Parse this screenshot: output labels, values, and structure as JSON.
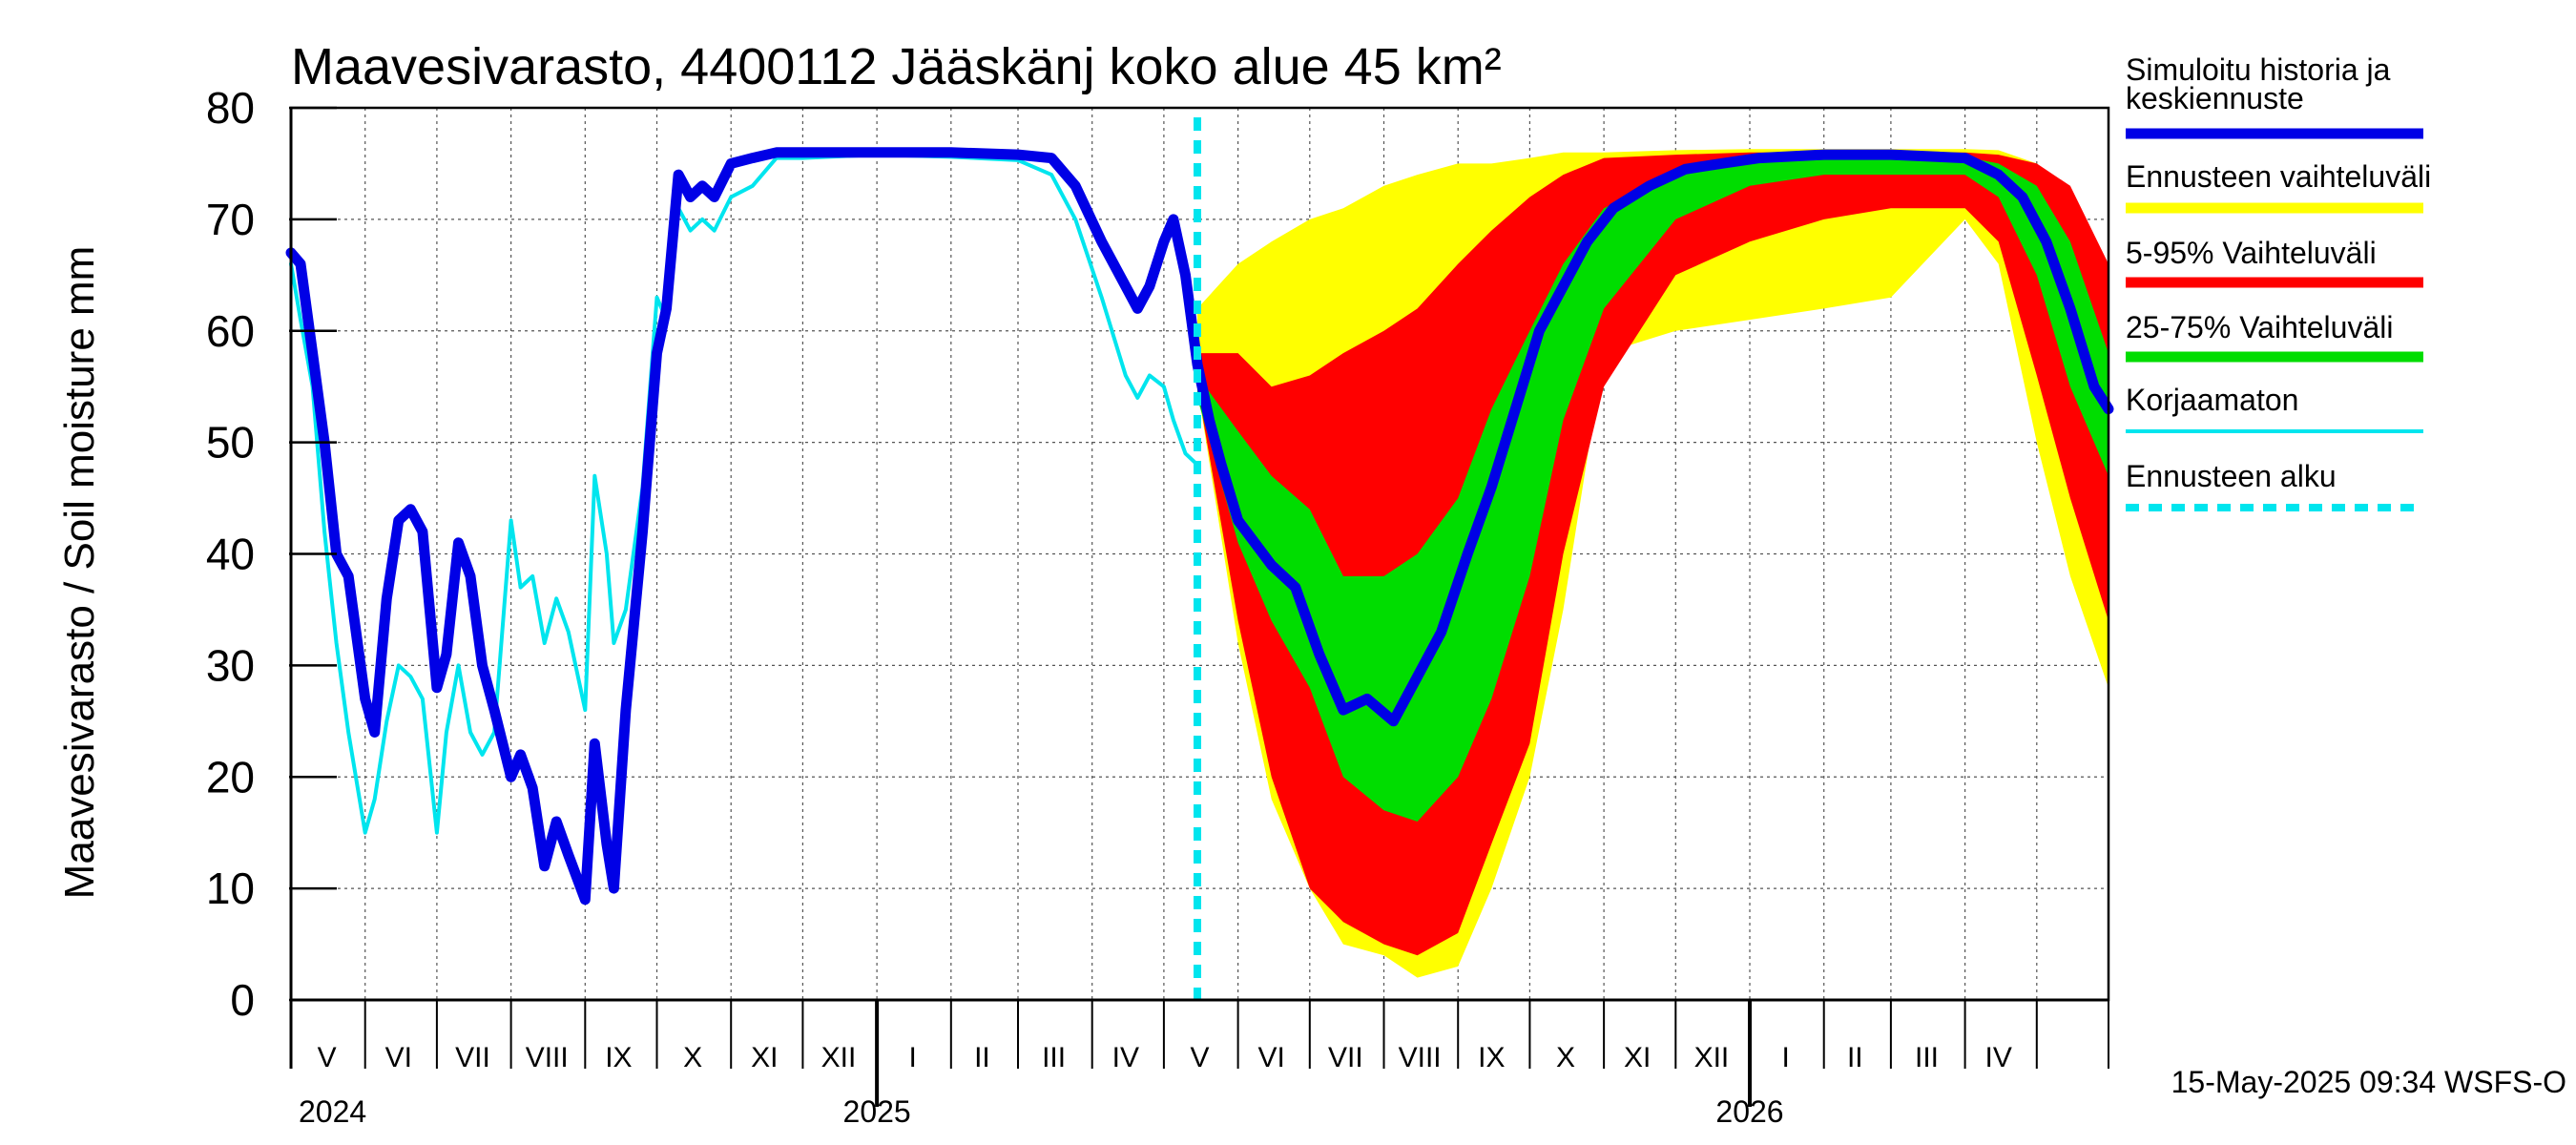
{
  "chart_data": {
    "type": "area",
    "title": "Maavesivarasto, 4400112 Jääskänj koko alue 45 km²",
    "ylabel": "Maavesivarasto / Soil moisture   mm",
    "ylim": [
      0,
      80
    ],
    "yticks": [
      0,
      10,
      20,
      30,
      40,
      50,
      60,
      70,
      80
    ],
    "xlim": [
      "2024-05-01",
      "2026-05-31"
    ],
    "grid": true,
    "legend_position": "right",
    "month_labels": [
      {
        "label": "V",
        "date": "2024-05-16"
      },
      {
        "label": "VI",
        "date": "2024-06-15"
      },
      {
        "label": "VII",
        "date": "2024-07-16"
      },
      {
        "label": "VIII",
        "date": "2024-08-16"
      },
      {
        "label": "IX",
        "date": "2024-09-15"
      },
      {
        "label": "X",
        "date": "2024-10-16"
      },
      {
        "label": "XI",
        "date": "2024-11-15"
      },
      {
        "label": "XII",
        "date": "2024-12-16"
      },
      {
        "label": "I",
        "date": "2025-01-16"
      },
      {
        "label": "II",
        "date": "2025-02-14"
      },
      {
        "label": "III",
        "date": "2025-03-16"
      },
      {
        "label": "IV",
        "date": "2025-04-15"
      },
      {
        "label": "V",
        "date": "2025-05-16"
      },
      {
        "label": "VI",
        "date": "2025-06-15"
      },
      {
        "label": "VII",
        "date": "2025-07-16"
      },
      {
        "label": "VIII",
        "date": "2025-08-16"
      },
      {
        "label": "IX",
        "date": "2025-09-15"
      },
      {
        "label": "X",
        "date": "2025-10-16"
      },
      {
        "label": "XI",
        "date": "2025-11-15"
      },
      {
        "label": "XII",
        "date": "2025-12-16"
      },
      {
        "label": "I",
        "date": "2026-01-16"
      },
      {
        "label": "II",
        "date": "2026-02-14"
      },
      {
        "label": "III",
        "date": "2026-03-16"
      },
      {
        "label": "IV",
        "date": "2026-04-15"
      }
    ],
    "year_labels": [
      {
        "label": "2024",
        "date": "2024-05-01"
      },
      {
        "label": "2025",
        "date": "2025-01-01"
      },
      {
        "label": "2026",
        "date": "2026-01-01"
      }
    ],
    "forecast_start": "2025-05-15",
    "series": [
      {
        "name": "Simuloitu historia ja keskiennuste",
        "color": "#0000e6",
        "kind": "line",
        "points": [
          [
            "2024-05-01",
            67
          ],
          [
            "2024-05-05",
            66
          ],
          [
            "2024-05-10",
            58
          ],
          [
            "2024-05-15",
            50
          ],
          [
            "2024-05-20",
            40
          ],
          [
            "2024-05-25",
            38
          ],
          [
            "2024-06-01",
            27
          ],
          [
            "2024-06-05",
            24
          ],
          [
            "2024-06-10",
            36
          ],
          [
            "2024-06-15",
            43
          ],
          [
            "2024-06-20",
            44
          ],
          [
            "2024-06-25",
            42
          ],
          [
            "2024-07-01",
            28
          ],
          [
            "2024-07-05",
            31
          ],
          [
            "2024-07-10",
            41
          ],
          [
            "2024-07-15",
            38
          ],
          [
            "2024-07-20",
            30
          ],
          [
            "2024-07-25",
            26
          ],
          [
            "2024-08-01",
            20
          ],
          [
            "2024-08-05",
            22
          ],
          [
            "2024-08-10",
            19
          ],
          [
            "2024-08-15",
            12
          ],
          [
            "2024-08-20",
            16
          ],
          [
            "2024-08-25",
            13
          ],
          [
            "2024-09-01",
            9
          ],
          [
            "2024-09-05",
            23
          ],
          [
            "2024-09-10",
            14
          ],
          [
            "2024-09-13",
            10
          ],
          [
            "2024-09-18",
            26
          ],
          [
            "2024-09-25",
            42
          ],
          [
            "2024-10-01",
            58
          ],
          [
            "2024-10-05",
            62
          ],
          [
            "2024-10-10",
            74
          ],
          [
            "2024-10-15",
            72
          ],
          [
            "2024-10-20",
            73
          ],
          [
            "2024-10-25",
            72
          ],
          [
            "2024-11-01",
            75
          ],
          [
            "2024-11-10",
            75.5
          ],
          [
            "2024-11-20",
            76
          ],
          [
            "2024-12-01",
            76
          ],
          [
            "2025-01-01",
            76
          ],
          [
            "2025-02-01",
            76
          ],
          [
            "2025-03-01",
            75.8
          ],
          [
            "2025-03-15",
            75.5
          ],
          [
            "2025-03-25",
            73
          ],
          [
            "2025-04-05",
            68
          ],
          [
            "2025-04-15",
            64
          ],
          [
            "2025-04-20",
            62
          ],
          [
            "2025-04-25",
            64
          ],
          [
            "2025-05-01",
            68
          ],
          [
            "2025-05-05",
            70
          ],
          [
            "2025-05-10",
            65
          ],
          [
            "2025-05-15",
            57
          ],
          [
            "2025-05-20",
            52
          ],
          [
            "2025-05-25",
            48
          ],
          [
            "2025-06-01",
            43
          ],
          [
            "2025-06-15",
            39
          ],
          [
            "2025-06-25",
            37
          ],
          [
            "2025-07-05",
            31
          ],
          [
            "2025-07-15",
            26
          ],
          [
            "2025-07-25",
            27
          ],
          [
            "2025-08-05",
            25
          ],
          [
            "2025-08-15",
            29
          ],
          [
            "2025-08-25",
            33
          ],
          [
            "2025-09-05",
            40
          ],
          [
            "2025-09-15",
            46
          ],
          [
            "2025-09-25",
            53
          ],
          [
            "2025-10-05",
            60
          ],
          [
            "2025-10-15",
            64
          ],
          [
            "2025-10-25",
            68
          ],
          [
            "2025-11-05",
            71
          ],
          [
            "2025-11-20",
            73
          ],
          [
            "2025-12-05",
            74.5
          ],
          [
            "2025-12-20",
            75
          ],
          [
            "2026-01-05",
            75.5
          ],
          [
            "2026-02-01",
            75.8
          ],
          [
            "2026-03-01",
            75.8
          ],
          [
            "2026-04-01",
            75.5
          ],
          [
            "2026-04-15",
            74
          ],
          [
            "2026-04-25",
            72
          ],
          [
            "2026-05-05",
            68
          ],
          [
            "2026-05-15",
            62
          ],
          [
            "2026-05-25",
            55
          ],
          [
            "2026-05-31",
            53
          ]
        ]
      },
      {
        "name": "Korjaamaton",
        "color": "#00e5ee",
        "kind": "line",
        "points": [
          [
            "2024-05-01",
            66
          ],
          [
            "2024-05-05",
            61
          ],
          [
            "2024-05-10",
            55
          ],
          [
            "2024-05-15",
            42
          ],
          [
            "2024-05-20",
            32
          ],
          [
            "2024-05-25",
            24
          ],
          [
            "2024-06-01",
            15
          ],
          [
            "2024-06-05",
            18
          ],
          [
            "2024-06-10",
            25
          ],
          [
            "2024-06-15",
            30
          ],
          [
            "2024-06-20",
            29
          ],
          [
            "2024-06-25",
            27
          ],
          [
            "2024-07-01",
            15
          ],
          [
            "2024-07-05",
            24
          ],
          [
            "2024-07-10",
            30
          ],
          [
            "2024-07-15",
            24
          ],
          [
            "2024-07-20",
            22
          ],
          [
            "2024-07-25",
            24
          ],
          [
            "2024-08-01",
            43
          ],
          [
            "2024-08-05",
            37
          ],
          [
            "2024-08-10",
            38
          ],
          [
            "2024-08-15",
            32
          ],
          [
            "2024-08-20",
            36
          ],
          [
            "2024-08-25",
            33
          ],
          [
            "2024-09-01",
            26
          ],
          [
            "2024-09-05",
            47
          ],
          [
            "2024-09-10",
            40
          ],
          [
            "2024-09-13",
            32
          ],
          [
            "2024-09-18",
            35
          ],
          [
            "2024-09-25",
            46
          ],
          [
            "2024-10-01",
            63
          ],
          [
            "2024-10-05",
            61
          ],
          [
            "2024-10-10",
            71
          ],
          [
            "2024-10-15",
            69
          ],
          [
            "2024-10-20",
            70
          ],
          [
            "2024-10-25",
            69
          ],
          [
            "2024-11-01",
            72
          ],
          [
            "2024-11-10",
            73
          ],
          [
            "2024-11-20",
            75.5
          ],
          [
            "2024-12-01",
            75.5
          ],
          [
            "2025-01-01",
            75.8
          ],
          [
            "2025-02-01",
            75.6
          ],
          [
            "2025-03-01",
            75.3
          ],
          [
            "2025-03-15",
            74
          ],
          [
            "2025-03-25",
            70
          ],
          [
            "2025-04-05",
            63
          ],
          [
            "2025-04-15",
            56
          ],
          [
            "2025-04-20",
            54
          ],
          [
            "2025-04-25",
            56
          ],
          [
            "2025-05-01",
            55
          ],
          [
            "2025-05-05",
            52
          ],
          [
            "2025-05-10",
            49
          ],
          [
            "2025-05-15",
            48
          ]
        ]
      }
    ],
    "bands": [
      {
        "name": "Ennusteen vaihteluväli",
        "color": "#ffff00",
        "x": [
          "2025-05-15",
          "2025-06-01",
          "2025-06-15",
          "2025-07-01",
          "2025-07-15",
          "2025-08-01",
          "2025-08-15",
          "2025-09-01",
          "2025-09-15",
          "2025-10-01",
          "2025-10-15",
          "2025-11-01",
          "2025-12-01",
          "2026-01-01",
          "2026-02-01",
          "2026-03-01",
          "2026-04-01",
          "2026-04-15",
          "2026-05-01",
          "2026-05-15",
          "2026-05-31"
        ],
        "low": [
          55,
          32,
          18,
          10,
          5,
          4,
          2,
          3,
          10,
          20,
          35,
          58,
          60,
          61,
          62,
          63,
          70,
          66,
          50,
          38,
          28
        ],
        "high": [
          62,
          66,
          68,
          70,
          71,
          73,
          74,
          75,
          75,
          75.5,
          76,
          76,
          76.2,
          76.3,
          76.3,
          76.3,
          76.3,
          76.2,
          75,
          71,
          64
        ]
      },
      {
        "name": "5-95% Vaihteluväli",
        "color": "#ff0000",
        "x": [
          "2025-05-15",
          "2025-06-01",
          "2025-06-15",
          "2025-07-01",
          "2025-07-15",
          "2025-08-01",
          "2025-08-15",
          "2025-09-01",
          "2025-09-15",
          "2025-10-01",
          "2025-10-15",
          "2025-11-01",
          "2025-12-01",
          "2026-01-01",
          "2026-02-01",
          "2026-03-01",
          "2026-04-01",
          "2026-04-15",
          "2026-05-01",
          "2026-05-15",
          "2026-05-31"
        ],
        "low": [
          55,
          34,
          20,
          10,
          7,
          5,
          4,
          6,
          14,
          23,
          40,
          55,
          65,
          68,
          70,
          71,
          71,
          68,
          56,
          45,
          34
        ],
        "high": [
          58,
          58,
          55,
          56,
          58,
          60,
          62,
          66,
          69,
          72,
          74,
          75.5,
          75.8,
          76,
          76,
          76,
          76,
          75.8,
          75,
          73,
          66
        ]
      },
      {
        "name": "25-75% Vaihteluväli",
        "color": "#00dd00",
        "x": [
          "2025-05-15",
          "2025-06-01",
          "2025-06-15",
          "2025-07-01",
          "2025-07-15",
          "2025-08-01",
          "2025-08-15",
          "2025-09-01",
          "2025-09-15",
          "2025-10-01",
          "2025-10-15",
          "2025-11-01",
          "2025-12-01",
          "2026-01-01",
          "2026-02-01",
          "2026-03-01",
          "2026-04-01",
          "2026-04-15",
          "2026-05-01",
          "2026-05-15",
          "2026-05-31"
        ],
        "low": [
          54,
          41,
          34,
          28,
          20,
          17,
          16,
          20,
          27,
          38,
          52,
          62,
          70,
          73,
          74,
          74,
          74,
          72,
          65,
          55,
          47
        ],
        "high": [
          56,
          51,
          47,
          44,
          38,
          38,
          40,
          45,
          53,
          60,
          66,
          71,
          74,
          75,
          75.5,
          75.6,
          75.6,
          75,
          73,
          68,
          58
        ]
      }
    ]
  },
  "legend": {
    "items": [
      {
        "label": "Simuloitu historia ja\nkeskiennuste",
        "color": "#0000e6",
        "style": "solid"
      },
      {
        "label": "Ennusteen vaihteluväli",
        "color": "#ffff00",
        "style": "solid"
      },
      {
        "label": "5-95% Vaihteluväli",
        "color": "#ff0000",
        "style": "solid"
      },
      {
        "label": "25-75% Vaihteluväli",
        "color": "#00dd00",
        "style": "solid"
      },
      {
        "label": "Korjaamaton",
        "color": "#00e5ee",
        "style": "thin"
      },
      {
        "label": "Ennusteen alku",
        "color": "#00e5ee",
        "style": "dashed"
      }
    ]
  },
  "footer": {
    "timestamp": "15-May-2025 09:34 WSFS-O"
  }
}
